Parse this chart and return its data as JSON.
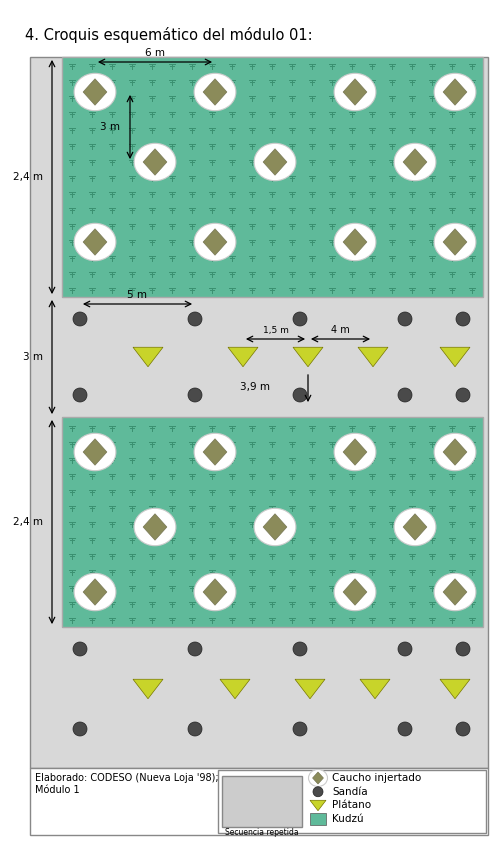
{
  "title": "4. Croquis esquemático del módulo 01:",
  "kudzu_color": "#5fba9a",
  "kudzu_plant_color": "#3a9070",
  "caucho_color": "#8b8b5a",
  "sandia_color": "#4a4a4a",
  "platano_color": "#c8d42a",
  "white_oval": "#ffffff",
  "grey_bg": "#d8d8d8",
  "outer_bg": "#d8d8d8",
  "footer_text1": "Elaborado: CODESO (Nueva Loja '98);",
  "footer_text2": "Módulo 1",
  "legend_labels": [
    "Caucho injertado",
    "Sandía",
    "Plátano",
    "Kudzú"
  ],
  "secuencia_label": "Secuencia repetida",
  "dim_6m": "6 m",
  "dim_3m": "3 m",
  "dim_5m": "5 m",
  "dim_15m": "1,5 m",
  "dim_4m": "4 m",
  "dim_39m": "3,9 m",
  "dim_24m_left1": "2,4 m",
  "dim_3m_left": "3 m",
  "dim_24m_left2": "2,4 m"
}
